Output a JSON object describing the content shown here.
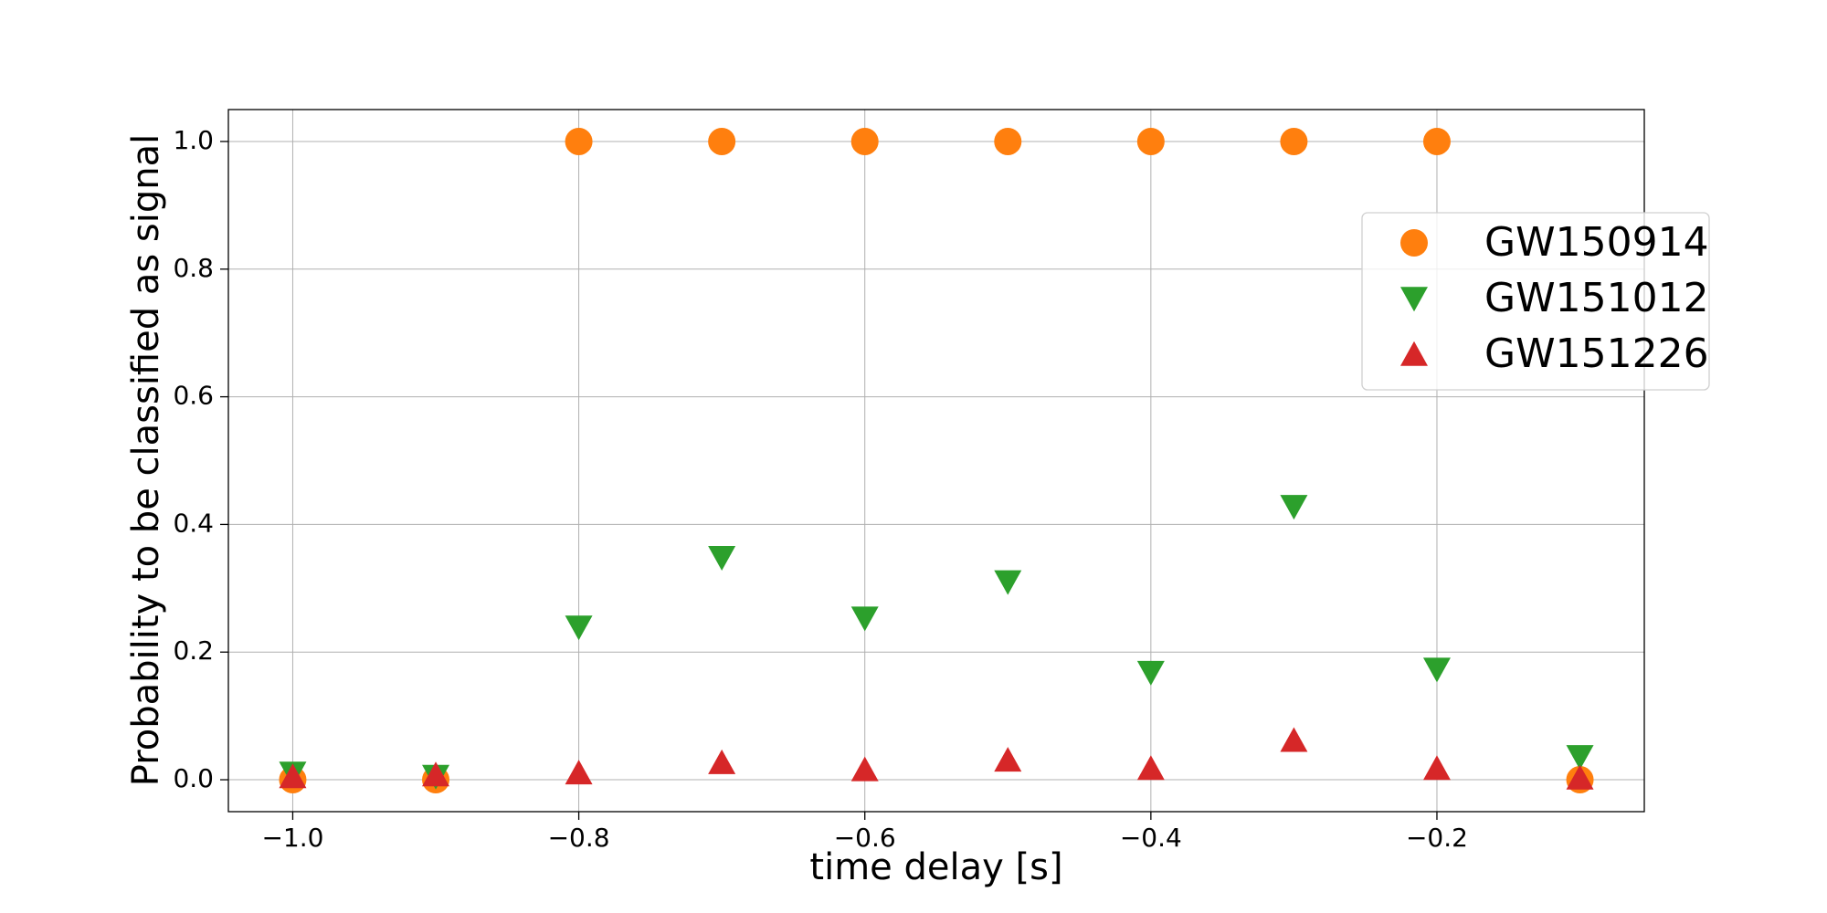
{
  "chart_data": {
    "type": "scatter",
    "x_label": "time delay [s]",
    "y_label": "Probability to be classified as signal",
    "x": [
      -1.0,
      -0.9,
      -0.8,
      -0.7,
      -0.6,
      -0.5,
      -0.4,
      -0.3,
      -0.2,
      -0.1
    ],
    "series": [
      {
        "name": "GW150914",
        "color": "#ff7f0e",
        "marker": "circle",
        "values": [
          0.0,
          0.0,
          1.0,
          1.0,
          1.0,
          1.0,
          1.0,
          1.0,
          1.0,
          0.0
        ]
      },
      {
        "name": "GW151012",
        "color": "#2ca02c",
        "marker": "triangle-down",
        "values": [
          0.01,
          0.005,
          0.239,
          0.348,
          0.253,
          0.31,
          0.168,
          0.428,
          0.173,
          0.036
        ]
      },
      {
        "name": "GW151226",
        "color": "#d62728",
        "marker": "triangle-up",
        "values": [
          0.005,
          0.008,
          0.011,
          0.027,
          0.016,
          0.031,
          0.018,
          0.062,
          0.018,
          0.003
        ]
      }
    ],
    "xlim": [
      -1.045,
      -0.055
    ],
    "ylim": [
      -0.05,
      1.05
    ],
    "xticks": [
      {
        "value": -1.0,
        "label": "−1.0"
      },
      {
        "value": -0.8,
        "label": "−0.8"
      },
      {
        "value": -0.6,
        "label": "−0.6"
      },
      {
        "value": -0.4,
        "label": "−0.4"
      },
      {
        "value": -0.2,
        "label": "−0.2"
      }
    ],
    "yticks": [
      {
        "value": 0.0,
        "label": "0.0"
      },
      {
        "value": 0.2,
        "label": "0.2"
      },
      {
        "value": 0.4,
        "label": "0.4"
      },
      {
        "value": 0.6,
        "label": "0.6"
      },
      {
        "value": 0.8,
        "label": "0.8"
      },
      {
        "value": 1.0,
        "label": "1.0"
      }
    ],
    "grid": true,
    "legend": "upper right"
  }
}
